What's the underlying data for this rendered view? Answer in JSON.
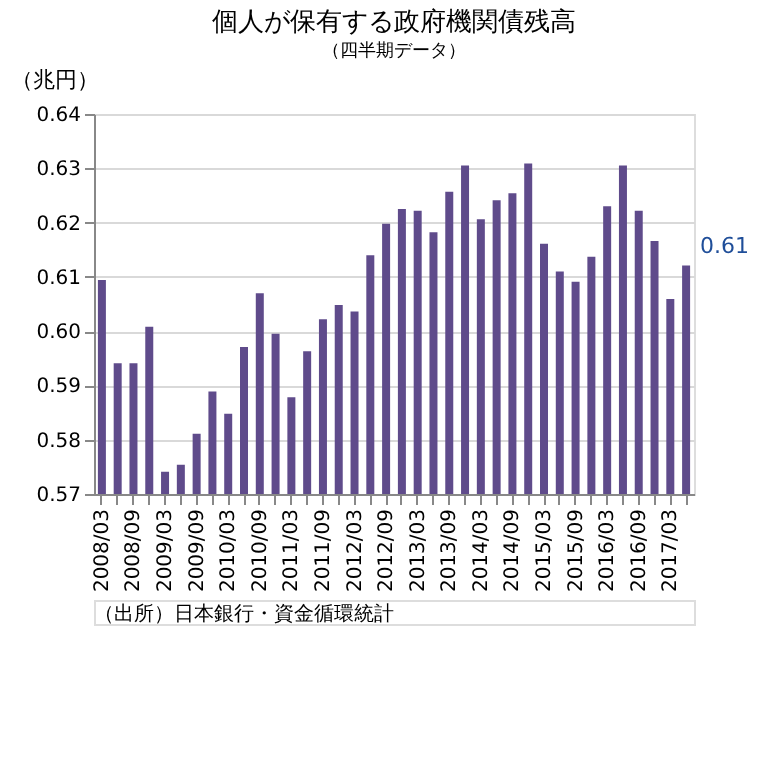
{
  "chart_data": {
    "type": "bar",
    "title": "個人が保有する政府機関債残高",
    "subtitle": "（四半期データ）",
    "ylabel": "（兆円）",
    "categories": [
      "2008/03",
      null,
      "2008/09",
      null,
      "2009/03",
      null,
      "2009/09",
      null,
      "2010/03",
      null,
      "2010/09",
      null,
      "2011/03",
      null,
      "2011/09",
      null,
      "2012/03",
      null,
      "2012/09",
      null,
      "2013/03",
      null,
      "2013/09",
      null,
      "2014/03",
      null,
      "2014/09",
      null,
      "2015/03",
      null,
      "2015/09",
      null,
      "2016/03",
      null,
      "2016/09",
      null,
      "2017/03",
      null
    ],
    "values": [
      0.6094,
      0.5941,
      0.5941,
      0.6008,
      0.5741,
      0.5754,
      0.5811,
      0.5889,
      0.5848,
      0.5971,
      0.607,
      0.5995,
      0.5878,
      0.5963,
      0.6022,
      0.6048,
      0.6036,
      0.614,
      0.6198,
      0.6225,
      0.6222,
      0.6182,
      0.6257,
      0.6305,
      0.6206,
      0.6241,
      0.6254,
      0.6309,
      0.6161,
      0.611,
      0.6091,
      0.6137,
      0.623,
      0.6305,
      0.6222,
      0.6166,
      0.6059,
      0.6121
    ],
    "color": "#5f4b8b",
    "ylim": [
      0.57,
      0.64
    ],
    "yticks": [
      {
        "value": 0.57,
        "label": "0.57"
      },
      {
        "value": 0.58,
        "label": "0.58"
      },
      {
        "value": 0.59,
        "label": "0.59"
      },
      {
        "value": 0.6,
        "label": "0.60"
      },
      {
        "value": 0.61,
        "label": "0.61"
      },
      {
        "value": 0.62,
        "label": "0.62"
      },
      {
        "value": 0.63,
        "label": "0.63"
      },
      {
        "value": 0.64,
        "label": "0.64"
      }
    ],
    "grid": "y",
    "annotations": [
      "（出所）日本銀行・資金循環統計",
      "0.61"
    ]
  }
}
